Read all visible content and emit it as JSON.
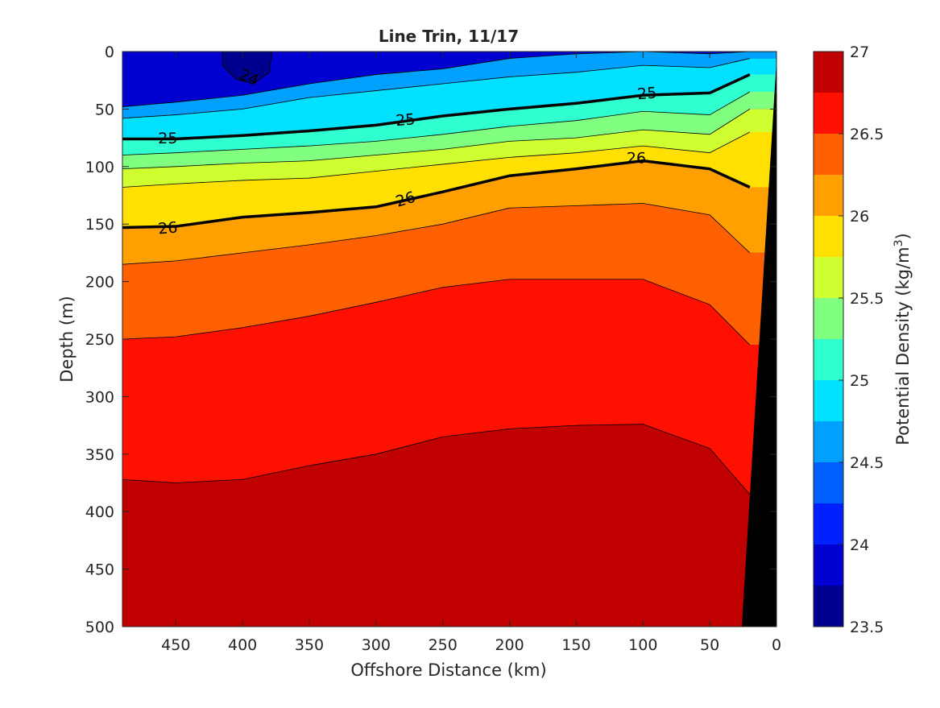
{
  "chart_data": {
    "type": "contour",
    "title": "Line Trin, 11/17",
    "xlabel": "Offshore Distance (km)",
    "ylabel": "Depth (m)",
    "xlim": [
      490,
      0
    ],
    "ylim": [
      500,
      0
    ],
    "x_reversed": true,
    "y_reversed": true,
    "x_ticks": [
      "450",
      "400",
      "350",
      "300",
      "250",
      "200",
      "150",
      "100",
      "50",
      "0"
    ],
    "y_ticks": [
      "0",
      "50",
      "100",
      "150",
      "200",
      "250",
      "300",
      "350",
      "400",
      "450",
      "500"
    ],
    "colorbar": {
      "label_prefix": "Potential Density (kg/m",
      "label_sup": "3",
      "label_suffix": ")",
      "range": [
        23.5,
        27
      ],
      "levels": [
        23.5,
        23.75,
        24,
        24.25,
        24.5,
        24.75,
        25,
        25.25,
        25.5,
        25.75,
        26,
        26.25,
        26.5,
        26.75,
        27
      ],
      "tick_labels": [
        "23.5",
        "24",
        "24.5",
        "25",
        "25.5",
        "26",
        "26.5",
        "27"
      ],
      "colors": [
        "#00008f",
        "#0000d0",
        "#0020ff",
        "#0060ff",
        "#00a0ff",
        "#00e0ff",
        "#30ffcf",
        "#80ff80",
        "#cfff30",
        "#ffe000",
        "#ffa000",
        "#ff6000",
        "#ff1000",
        "#c00000"
      ],
      "colormap": "jet"
    },
    "contour_labels": [
      {
        "text": "24",
        "x": 395,
        "depth": 22,
        "angle": 25
      },
      {
        "text": "25",
        "x": 456,
        "depth": 75,
        "angle": 0
      },
      {
        "text": "25",
        "x": 278,
        "depth": 59,
        "angle": -5
      },
      {
        "text": "25",
        "x": 97,
        "depth": 36,
        "angle": -5
      },
      {
        "text": "26",
        "x": 456,
        "depth": 153,
        "angle": -5
      },
      {
        "text": "26",
        "x": 278,
        "depth": 128,
        "angle": -17
      },
      {
        "text": "26",
        "x": 105,
        "depth": 92,
        "angle": 0
      }
    ],
    "isopycnal_depths_x": [
      490,
      450,
      400,
      350,
      300,
      250,
      200,
      150,
      100,
      50,
      20
    ],
    "isopycnals": [
      {
        "level": 24.5,
        "depth": [
          48,
          44,
          38,
          28,
          20,
          15,
          6,
          2,
          0,
          2,
          0
        ]
      },
      {
        "level": 24.75,
        "depth": [
          58,
          55,
          50,
          40,
          34,
          28,
          22,
          18,
          12,
          14,
          6
        ]
      },
      {
        "level": 25.0,
        "depth": [
          76,
          76,
          73,
          69,
          64,
          56,
          50,
          45,
          38,
          36,
          20
        ]
      },
      {
        "level": 25.25,
        "depth": [
          90,
          88,
          85,
          82,
          78,
          72,
          65,
          60,
          52,
          55,
          35
        ]
      },
      {
        "level": 25.5,
        "depth": [
          102,
          100,
          97,
          95,
          90,
          85,
          78,
          75,
          68,
          72,
          50
        ]
      },
      {
        "level": 25.75,
        "depth": [
          118,
          115,
          112,
          110,
          104,
          98,
          92,
          88,
          82,
          88,
          70
        ]
      },
      {
        "level": 26.0,
        "depth": [
          153,
          152,
          144,
          140,
          135,
          122,
          108,
          102,
          95,
          102,
          118
        ]
      },
      {
        "level": 26.25,
        "depth": [
          185,
          182,
          175,
          168,
          160,
          150,
          136,
          134,
          132,
          142,
          175
        ]
      },
      {
        "level": 26.5,
        "depth": [
          250,
          248,
          240,
          230,
          218,
          205,
          198,
          198,
          198,
          220,
          255
        ]
      },
      {
        "level": 26.75,
        "depth": [
          372,
          375,
          372,
          360,
          350,
          335,
          328,
          325,
          324,
          345,
          385
        ]
      }
    ],
    "bottom_mask": {
      "color": "#000000",
      "x_top": 0,
      "depth_top": 8,
      "x_bottom": 26,
      "depth_bottom": 500
    }
  }
}
